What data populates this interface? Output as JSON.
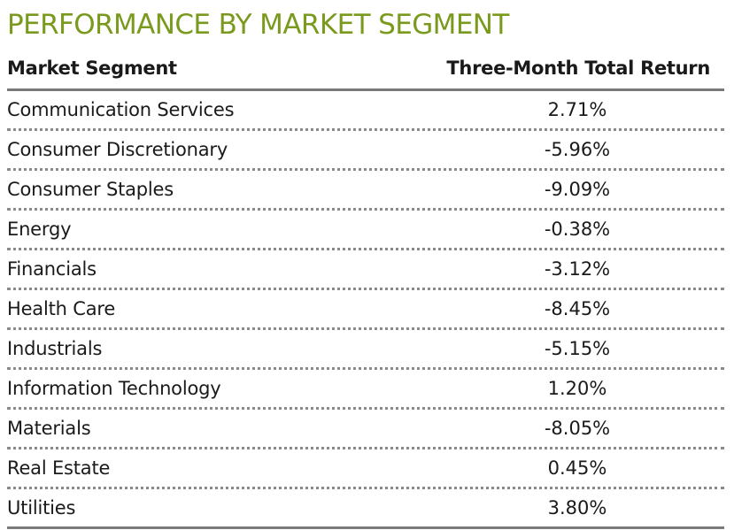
{
  "chart_data": {
    "type": "table",
    "title": "PERFORMANCE BY MARKET SEGMENT",
    "title_color": "#7a9a1e",
    "columns": [
      "Market Segment",
      "Three-Month Total Return"
    ],
    "rows": [
      {
        "segment": "Communication Services",
        "return": "2.71%"
      },
      {
        "segment": "Consumer Discretionary",
        "return": "-5.96%"
      },
      {
        "segment": "Consumer Staples",
        "return": "-9.09%"
      },
      {
        "segment": "Energy",
        "return": "-0.38%"
      },
      {
        "segment": "Financials",
        "return": "-3.12%"
      },
      {
        "segment": "Health Care",
        "return": "-8.45%"
      },
      {
        "segment": "Industrials",
        "return": "-5.15%"
      },
      {
        "segment": "Information Technology",
        "return": "1.20%"
      },
      {
        "segment": "Materials",
        "return": "-8.05%"
      },
      {
        "segment": "Real Estate",
        "return": "0.45%"
      },
      {
        "segment": "Utilities",
        "return": "3.80%"
      }
    ]
  }
}
